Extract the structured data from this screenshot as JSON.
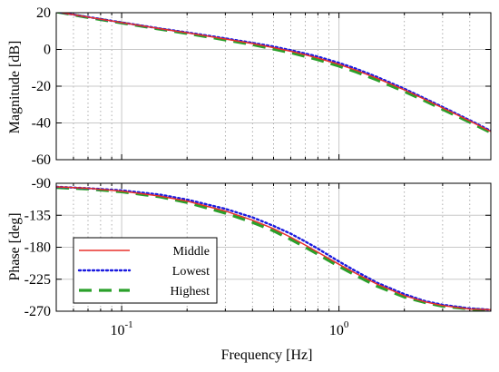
{
  "chart_data": [
    {
      "type": "line",
      "panel": "magnitude",
      "ylabel": "Magnitude [dB]",
      "xlabel": "",
      "xscale": "log",
      "xlim": [
        0.05,
        5
      ],
      "ylim": [
        -60,
        20
      ],
      "yticks": [
        20,
        0,
        -20,
        -40,
        -60
      ],
      "ytick_labels": [
        "20",
        "0",
        "-20",
        "-40",
        "-60"
      ],
      "grid": true,
      "series": [
        {
          "name": "Middle",
          "color": "#e8302c",
          "style": "solid",
          "x": [
            0.05,
            0.07,
            0.1,
            0.15,
            0.2,
            0.3,
            0.4,
            0.5,
            0.6,
            0.7,
            0.8,
            1.0,
            1.2,
            1.5,
            2.0,
            2.5,
            3.0,
            4.0,
            5.0
          ],
          "y": [
            20.5,
            17.6,
            14.6,
            11.3,
            9.1,
            5.7,
            3.2,
            1.0,
            -1.0,
            -2.9,
            -4.7,
            -8.1,
            -11.3,
            -15.7,
            -22.0,
            -27.3,
            -31.8,
            -38.9,
            -44.7
          ]
        },
        {
          "name": "Lowest",
          "color": "#1a1adf",
          "style": "dotted",
          "x": [
            0.05,
            0.07,
            0.1,
            0.15,
            0.2,
            0.3,
            0.4,
            0.5,
            0.6,
            0.7,
            0.8,
            1.0,
            1.2,
            1.5,
            2.0,
            2.5,
            3.0,
            4.0,
            5.0
          ],
          "y": [
            20.5,
            17.7,
            14.7,
            11.4,
            9.3,
            6.0,
            3.6,
            1.6,
            -0.4,
            -2.2,
            -3.9,
            -7.3,
            -10.5,
            -15.0,
            -21.4,
            -26.8,
            -31.3,
            -38.5,
            -44.3
          ]
        },
        {
          "name": "Highest",
          "color": "#2aa02a",
          "style": "dashed",
          "x": [
            0.05,
            0.07,
            0.1,
            0.15,
            0.2,
            0.3,
            0.4,
            0.5,
            0.6,
            0.7,
            0.8,
            1.0,
            1.2,
            1.5,
            2.0,
            2.5,
            3.0,
            4.0,
            5.0
          ],
          "y": [
            20.5,
            17.4,
            14.4,
            11.0,
            8.7,
            5.2,
            2.6,
            0.2,
            -1.8,
            -3.8,
            -5.6,
            -9.1,
            -12.3,
            -16.7,
            -22.9,
            -28.1,
            -32.6,
            -39.6,
            -45.3
          ]
        }
      ]
    },
    {
      "type": "line",
      "panel": "phase",
      "ylabel": "Phase [deg]",
      "xlabel": "Frequency [Hz]",
      "xscale": "log",
      "xlim": [
        0.05,
        5
      ],
      "ylim": [
        -270,
        -90
      ],
      "yticks": [
        -90,
        -135,
        -180,
        -225,
        -270
      ],
      "ytick_labels": [
        "-90",
        "-135",
        "-180",
        "-225",
        "-270"
      ],
      "xticks": [
        0.1,
        1
      ],
      "xtick_labels": [
        {
          "base": "10",
          "exp": "-1"
        },
        {
          "base": "10",
          "exp": "0"
        }
      ],
      "grid": true,
      "legend_position": "lower-left",
      "series": [
        {
          "name": "Middle",
          "color": "#e8302c",
          "style": "solid",
          "x": [
            0.05,
            0.07,
            0.1,
            0.15,
            0.2,
            0.3,
            0.4,
            0.5,
            0.6,
            0.7,
            0.8,
            1.0,
            1.2,
            1.5,
            2.0,
            2.5,
            3.0,
            4.0,
            5.0
          ],
          "y": [
            -95,
            -97,
            -101,
            -108,
            -115,
            -129,
            -142,
            -154,
            -166,
            -177,
            -187,
            -204,
            -217,
            -232,
            -248,
            -257,
            -262,
            -267,
            -268
          ]
        },
        {
          "name": "Lowest",
          "color": "#1a1adf",
          "style": "dotted",
          "x": [
            0.05,
            0.07,
            0.1,
            0.15,
            0.2,
            0.3,
            0.4,
            0.5,
            0.6,
            0.7,
            0.8,
            1.0,
            1.2,
            1.5,
            2.0,
            2.5,
            3.0,
            4.0,
            5.0
          ],
          "y": [
            -95,
            -97,
            -100,
            -106,
            -113,
            -126,
            -138,
            -150,
            -161,
            -172,
            -182,
            -200,
            -214,
            -230,
            -246,
            -256,
            -261,
            -266,
            -268
          ]
        },
        {
          "name": "Highest",
          "color": "#2aa02a",
          "style": "dashed",
          "x": [
            0.05,
            0.07,
            0.1,
            0.15,
            0.2,
            0.3,
            0.4,
            0.5,
            0.6,
            0.7,
            0.8,
            1.0,
            1.2,
            1.5,
            2.0,
            2.5,
            3.0,
            4.0,
            5.0
          ],
          "y": [
            -96,
            -98,
            -102,
            -109,
            -117,
            -132,
            -145,
            -157,
            -169,
            -180,
            -190,
            -207,
            -220,
            -235,
            -250,
            -258,
            -263,
            -267,
            -269
          ]
        }
      ]
    }
  ]
}
